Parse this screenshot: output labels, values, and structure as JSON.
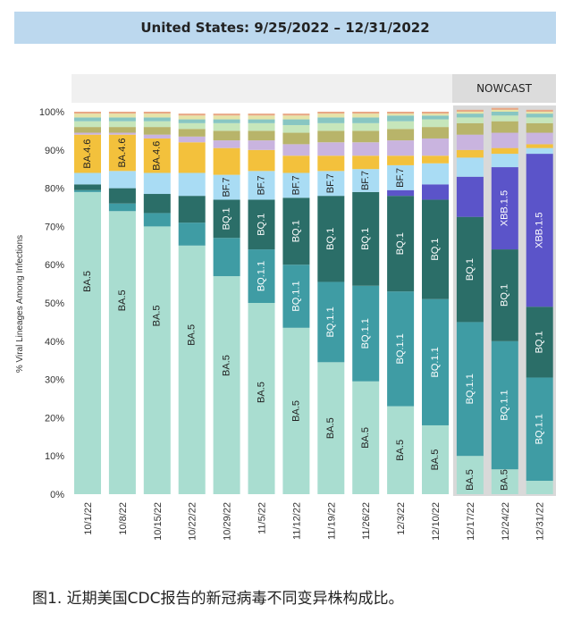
{
  "header": {
    "title": "United States: 9/25/2022 – 12/31/2022",
    "nowcast_label": "NOWCAST"
  },
  "caption": "图1. 近期美国CDC报告的新冠病毒不同变异株构成比。",
  "colors": {
    "BA.5": "#a9ddd0",
    "BQ.1.1": "#3f9ca4",
    "BQ.1": "#2b6e68",
    "XBB.1.5": "#5b54c9",
    "BF.7": "#a9dcf4",
    "BA.4.6": "#f3c13c",
    "small1": "#c9b4df",
    "small2": "#b8b46a",
    "small3": "#c6e6bb",
    "small4": "#88c6c2",
    "small5": "#e6e4a8",
    "small6": "#e8a886"
  },
  "chart_data": {
    "type": "bar",
    "stacked": true,
    "ylabel": "% Viral Lineages Among Infections",
    "ylim": [
      0,
      100
    ],
    "yticks": [
      "0%",
      "10%",
      "20%",
      "30%",
      "40%",
      "50%",
      "60%",
      "70%",
      "80%",
      "90%",
      "100%"
    ],
    "categories": [
      "10/1/22",
      "10/8/22",
      "10/15/22",
      "10/22/22",
      "10/29/22",
      "11/5/22",
      "11/12/22",
      "11/19/22",
      "11/26/22",
      "12/3/22",
      "12/10/22",
      "12/17/22",
      "12/24/22",
      "12/31/22"
    ],
    "nowcast_from_index": 11,
    "series": [
      {
        "name": "BA.5",
        "values": [
          79,
          74,
          70,
          65,
          57,
          50,
          43.5,
          34.5,
          29.5,
          23,
          18,
          10,
          6.5,
          3.5
        ]
      },
      {
        "name": "BQ.1.1",
        "values": [
          0.5,
          2,
          3.5,
          6,
          10,
          14,
          16.5,
          21,
          25,
          30,
          33,
          35,
          33.5,
          27
        ]
      },
      {
        "name": "BQ.1",
        "values": [
          1.5,
          4,
          5,
          7,
          10,
          13,
          17.5,
          22.5,
          24.5,
          25,
          26,
          27.5,
          24,
          18.5
        ]
      },
      {
        "name": "XBB.1.5",
        "values": [
          0,
          0,
          0,
          0,
          0,
          0,
          0,
          0,
          0,
          1.5,
          4,
          10.5,
          21.5,
          40
        ]
      },
      {
        "name": "BF.7",
        "values": [
          3,
          4.5,
          5.5,
          6,
          6.5,
          7.5,
          6.5,
          6.5,
          6,
          6.5,
          5.5,
          5,
          3.5,
          1.5
        ]
      },
      {
        "name": "BA.4.6",
        "values": [
          10,
          9.5,
          9,
          8,
          7,
          5.5,
          4.5,
          4,
          3.5,
          2.5,
          2,
          2,
          1.5,
          1
        ]
      },
      {
        "name": "small1",
        "values": [
          0.5,
          0.5,
          1,
          1.5,
          2,
          2.5,
          3,
          3.5,
          3.5,
          4,
          4.5,
          4,
          4,
          3
        ]
      },
      {
        "name": "small2",
        "values": [
          1.5,
          1.5,
          2,
          2,
          2.5,
          2.5,
          3,
          3,
          3,
          3,
          3,
          3,
          3,
          2.5
        ]
      },
      {
        "name": "small3",
        "values": [
          1.5,
          1.5,
          1.5,
          1.5,
          2,
          2,
          2,
          2,
          2,
          2,
          2,
          1.5,
          1.5,
          1.5
        ]
      },
      {
        "name": "small4",
        "values": [
          1,
          1,
          1,
          1,
          1,
          1,
          1.5,
          1.5,
          1.5,
          1.5,
          1,
          1,
          1,
          1
        ]
      },
      {
        "name": "small5",
        "values": [
          1,
          1,
          1,
          1,
          1,
          1,
          1,
          1,
          1,
          0.5,
          0.5,
          0.5,
          0.5,
          0.5
        ]
      },
      {
        "name": "small6",
        "values": [
          0.5,
          0.5,
          0.5,
          0.5,
          0.5,
          0.5,
          0.5,
          0.5,
          0.5,
          0.5,
          0.5,
          0.5,
          0.5,
          0.5
        ]
      }
    ],
    "bar_labels": [
      {
        "bar": 0,
        "series": "BA.5",
        "text": "BA.5"
      },
      {
        "bar": 0,
        "series": "BA.4.6",
        "text": "BA.4.6"
      },
      {
        "bar": 1,
        "series": "BA.5",
        "text": "BA.5"
      },
      {
        "bar": 1,
        "series": "BA.4.6",
        "text": "BA.4.6"
      },
      {
        "bar": 2,
        "series": "BA.5",
        "text": "BA.5"
      },
      {
        "bar": 2,
        "series": "BA.4.6",
        "text": "BA.4.6"
      },
      {
        "bar": 3,
        "series": "BA.5",
        "text": "BA.5"
      },
      {
        "bar": 4,
        "series": "BA.5",
        "text": "BA.5"
      },
      {
        "bar": 4,
        "series": "BQ.1",
        "text": "BQ.1"
      },
      {
        "bar": 4,
        "series": "BF.7",
        "text": "BF.7"
      },
      {
        "bar": 5,
        "series": "BA.5",
        "text": "BA.5"
      },
      {
        "bar": 5,
        "series": "BQ.1.1",
        "text": "BQ.1.1"
      },
      {
        "bar": 5,
        "series": "BQ.1",
        "text": "BQ.1"
      },
      {
        "bar": 5,
        "series": "BF.7",
        "text": "BF.7"
      },
      {
        "bar": 6,
        "series": "BA.5",
        "text": "BA.5"
      },
      {
        "bar": 6,
        "series": "BQ.1.1",
        "text": "BQ.1.1"
      },
      {
        "bar": 6,
        "series": "BQ.1",
        "text": "BQ.1"
      },
      {
        "bar": 6,
        "series": "BF.7",
        "text": "BF.7"
      },
      {
        "bar": 7,
        "series": "BA.5",
        "text": "BA.5"
      },
      {
        "bar": 7,
        "series": "BQ.1.1",
        "text": "BQ.1.1"
      },
      {
        "bar": 7,
        "series": "BQ.1",
        "text": "BQ.1"
      },
      {
        "bar": 7,
        "series": "BF.7",
        "text": "BF.7"
      },
      {
        "bar": 8,
        "series": "BA.5",
        "text": "BA.5"
      },
      {
        "bar": 8,
        "series": "BQ.1.1",
        "text": "BQ.1.1"
      },
      {
        "bar": 8,
        "series": "BQ.1",
        "text": "BQ.1"
      },
      {
        "bar": 8,
        "series": "BF.7",
        "text": "BF.7"
      },
      {
        "bar": 9,
        "series": "BA.5",
        "text": "BA.5"
      },
      {
        "bar": 9,
        "series": "BQ.1.1",
        "text": "BQ.1.1"
      },
      {
        "bar": 9,
        "series": "BQ.1",
        "text": "BQ.1"
      },
      {
        "bar": 9,
        "series": "BF.7",
        "text": "BF.7"
      },
      {
        "bar": 10,
        "series": "BA.5",
        "text": "BA.5"
      },
      {
        "bar": 10,
        "series": "BQ.1.1",
        "text": "BQ.1.1"
      },
      {
        "bar": 10,
        "series": "BQ.1",
        "text": "BQ.1"
      },
      {
        "bar": 11,
        "series": "BA.5",
        "text": "BA.5"
      },
      {
        "bar": 11,
        "series": "BQ.1.1",
        "text": "BQ.1.1"
      },
      {
        "bar": 11,
        "series": "BQ.1",
        "text": "BQ.1"
      },
      {
        "bar": 12,
        "series": "BA.5",
        "text": "BA.5"
      },
      {
        "bar": 12,
        "series": "BQ.1.1",
        "text": "BQ.1.1"
      },
      {
        "bar": 12,
        "series": "BQ.1",
        "text": "BQ.1"
      },
      {
        "bar": 12,
        "series": "XBB.1.5",
        "text": "XBB.1.5"
      },
      {
        "bar": 13,
        "series": "BQ.1.1",
        "text": "BQ.1.1"
      },
      {
        "bar": 13,
        "series": "BQ.1",
        "text": "BQ.1"
      },
      {
        "bar": 13,
        "series": "XBB.1.5",
        "text": "XBB.1.5"
      }
    ]
  }
}
